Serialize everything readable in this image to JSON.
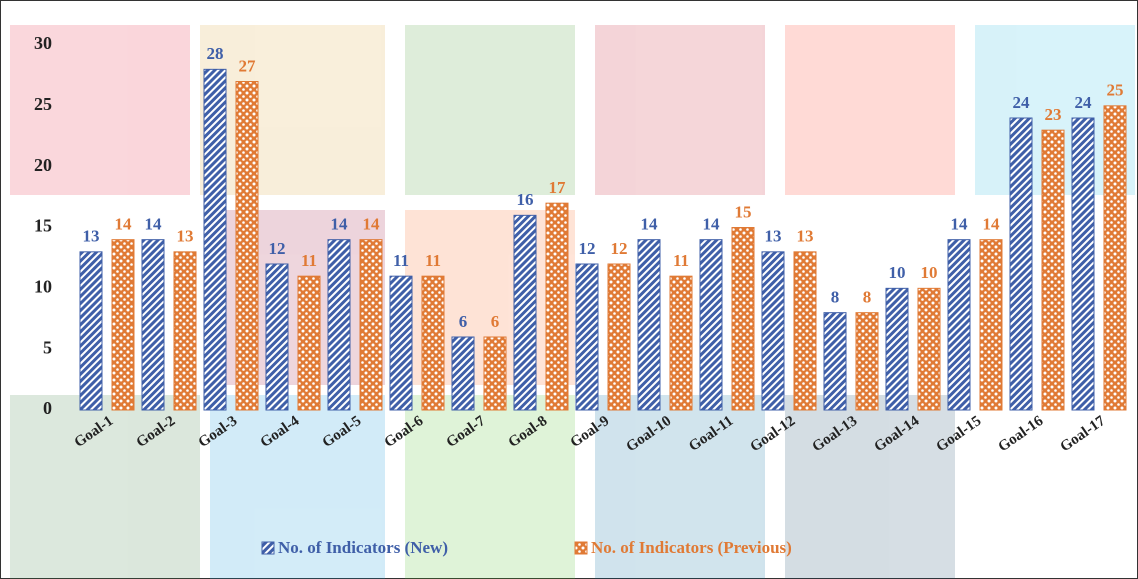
{
  "chart_data": {
    "type": "bar",
    "categories": [
      "Goal-1",
      "Goal-2",
      "Goal-3",
      "Goal-4",
      "Goal-5",
      "Goal-6",
      "Goal-7",
      "Goal-8",
      "Goal-9",
      "Goal-10",
      "Goal-11",
      "Goal-12",
      "Goal-13",
      "Goal-14",
      "Goal-15",
      "Goal-16",
      "Goal-17"
    ],
    "series": [
      {
        "name": "No. of Indicators (New)",
        "color": "#3f5fa8",
        "values": [
          13,
          14,
          28,
          12,
          14,
          11,
          6,
          16,
          12,
          14,
          14,
          13,
          8,
          10,
          14,
          24,
          24
        ]
      },
      {
        "name": "No. of Indicators (Previous)",
        "color": "#e07a35",
        "values": [
          14,
          13,
          27,
          11,
          14,
          11,
          6,
          17,
          12,
          11,
          15,
          13,
          8,
          10,
          14,
          23,
          25
        ]
      }
    ],
    "ylim": [
      0,
      30
    ],
    "yticks": [
      0,
      5,
      10,
      15,
      20,
      25,
      30
    ]
  }
}
